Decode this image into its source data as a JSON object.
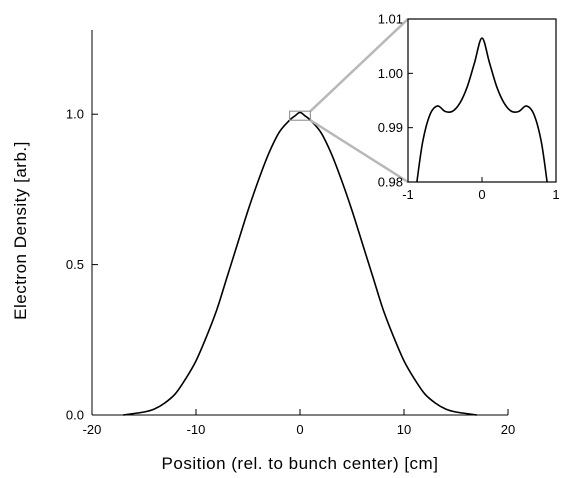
{
  "chart_data": [
    {
      "type": "line",
      "title": "",
      "xlabel": "Position (rel. to bunch center) [cm]",
      "ylabel": "Electron Density [arb.]",
      "xlim": [
        -20,
        20
      ],
      "ylim": [
        0,
        1.28
      ],
      "xticks": [
        -20,
        -10,
        0,
        10,
        20
      ],
      "xtick_labels": [
        "-20",
        "-10",
        "0",
        "10",
        "20"
      ],
      "yticks": [
        0,
        0.5,
        1
      ],
      "ytick_labels": [
        "0.0",
        "0.5",
        "1.0"
      ],
      "grid": false,
      "legend": "none",
      "series": [
        {
          "x": [
            -17,
            -15,
            -14,
            -13,
            -12,
            -11,
            -10,
            -9,
            -8,
            -7,
            -6,
            -5,
            -4,
            -3,
            -2,
            -1,
            -0.5,
            0,
            0.5,
            1,
            2,
            3,
            4,
            5,
            6,
            7,
            8,
            9,
            10,
            11,
            12,
            13,
            14,
            15,
            17
          ],
          "y": [
            0.0,
            0.01,
            0.02,
            0.04,
            0.07,
            0.12,
            0.18,
            0.26,
            0.35,
            0.46,
            0.57,
            0.68,
            0.78,
            0.87,
            0.94,
            0.98,
            0.994,
            1.006,
            0.994,
            0.98,
            0.94,
            0.87,
            0.78,
            0.68,
            0.57,
            0.46,
            0.35,
            0.26,
            0.18,
            0.12,
            0.07,
            0.04,
            0.02,
            0.01,
            0.0
          ],
          "color": "#000000"
        }
      ],
      "zoom_region": {
        "x": [
          -1,
          1
        ],
        "y": [
          0.98,
          1.01
        ]
      }
    },
    {
      "type": "line",
      "title": "",
      "xlabel": "",
      "ylabel": "",
      "xlim": [
        -1,
        1
      ],
      "ylim": [
        0.98,
        1.01
      ],
      "xticks": [
        -1,
        0,
        1
      ],
      "xtick_labels": [
        "-1",
        "0",
        "1"
      ],
      "yticks": [
        0.98,
        0.99,
        1.0,
        1.01
      ],
      "ytick_labels": [
        "0.98",
        "0.99",
        "1.00",
        "1.01"
      ],
      "grid": false,
      "legend": "none",
      "series": [
        {
          "x": [
            -0.88,
            -0.8,
            -0.7,
            -0.6,
            -0.5,
            -0.4,
            -0.3,
            -0.2,
            -0.1,
            0,
            0.1,
            0.2,
            0.3,
            0.4,
            0.5,
            0.6,
            0.7,
            0.8,
            0.88
          ],
          "y": [
            0.98,
            0.9875,
            0.9925,
            0.994,
            0.993,
            0.993,
            0.9945,
            0.9975,
            1.002,
            1.0065,
            1.002,
            0.9975,
            0.9945,
            0.993,
            0.993,
            0.994,
            0.9925,
            0.9875,
            0.98
          ],
          "color": "#000000"
        }
      ]
    }
  ]
}
